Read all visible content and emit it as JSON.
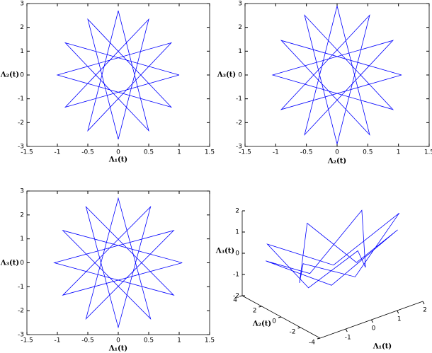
{
  "chart_data": [
    {
      "type": "line",
      "xlabel": "Λ₁(t)",
      "ylabel": "Λ₂(t)",
      "xlim": [
        -1.5,
        1.5
      ],
      "ylim": [
        -3,
        3
      ],
      "xticks": [
        -1.5,
        -1,
        -0.5,
        0,
        0.5,
        1,
        1.5
      ],
      "yticks": [
        -3,
        -2,
        -1,
        0,
        1,
        2,
        3
      ],
      "series": [
        {
          "color": "#0000ff",
          "x": [
            1,
            -0.87,
            0.5,
            0,
            -0.5,
            0.87,
            -1,
            0.87,
            -0.5,
            0,
            0.5,
            -0.87,
            1
          ],
          "y": [
            0,
            1.35,
            -2.34,
            2.7,
            -2.34,
            1.35,
            0,
            -1.35,
            2.34,
            -2.7,
            2.34,
            -1.35,
            0
          ]
        }
      ]
    },
    {
      "type": "line",
      "xlabel": "Λ₂(t)",
      "ylabel": "Λ₃(t)",
      "xlim": [
        -1.5,
        1.5
      ],
      "ylim": [
        -3,
        3
      ],
      "xticks": [
        -1.5,
        -1,
        -0.5,
        0,
        0.5,
        1,
        1.5
      ],
      "yticks": [
        -3,
        -2,
        -1,
        0,
        1,
        2,
        3
      ],
      "series": [
        {
          "color": "#0000ff",
          "x": [
            1.05,
            -0.91,
            0.53,
            0,
            -0.53,
            0.91,
            -1.05,
            0.91,
            -0.53,
            0,
            0.53,
            -0.91,
            1.05
          ],
          "y": [
            0,
            1.45,
            -2.51,
            2.9,
            -2.51,
            1.45,
            0,
            -1.45,
            2.51,
            -2.9,
            2.51,
            -1.45,
            0
          ]
        }
      ]
    },
    {
      "type": "line",
      "xlabel": "Λ₁(t)",
      "ylabel": "Λ₃(t)",
      "xlim": [
        -1.5,
        1.5
      ],
      "ylim": [
        -3,
        3
      ],
      "xticks": [
        -1.5,
        -1,
        -0.5,
        0,
        0.5,
        1,
        1.5
      ],
      "yticks": [
        -3,
        -2,
        -1,
        0,
        1,
        2,
        3
      ],
      "series": [
        {
          "color": "#0000ff",
          "x": [
            1.05,
            -0.91,
            0.53,
            0,
            -0.53,
            0.91,
            -1.05,
            0.91,
            -0.53,
            0,
            0.53,
            -0.91,
            1.05
          ],
          "y": [
            0,
            1.35,
            -2.34,
            2.7,
            -2.34,
            1.35,
            0,
            -1.35,
            2.34,
            -2.7,
            2.34,
            -1.35,
            0
          ]
        }
      ]
    },
    {
      "type": "line3d",
      "xlabel": "Λ₁(t)",
      "ylabel": "Λ₂(t)",
      "zlabel": "Λ₃(t)",
      "xlim": [
        -2,
        2
      ],
      "ylim": [
        -4,
        4
      ],
      "zlim": [
        -2,
        2
      ],
      "xticks": [
        -1,
        0,
        1,
        2
      ],
      "yticks": [
        -4,
        -2,
        0,
        2,
        4
      ],
      "zticks": [
        -2,
        -1,
        0,
        1,
        2
      ],
      "series": [
        {
          "color": "#0000ff",
          "x": [
            2.6,
            0.46,
            -1.84,
            -1.11,
            0,
            1.11,
            1.84,
            -0.46,
            -2.6,
            -0.46,
            1.84,
            1.11,
            0,
            -1.11,
            -1.84,
            0.46,
            2.6
          ],
          "y": [
            0,
            1.11,
            1.84,
            -0.46,
            -2.6,
            -0.46,
            1.84,
            1.11,
            0,
            -1.11,
            -1.84,
            0.46,
            2.6,
            0.46,
            -1.84,
            -1.11,
            0
          ],
          "z": [
            0.9,
            -0.9,
            0.9,
            -0.9,
            0.9,
            -0.9,
            0.9,
            -0.9,
            0.9,
            -0.9,
            0.9,
            -0.9,
            0.9,
            -0.9,
            0.9,
            -0.9,
            0.9
          ]
        }
      ]
    }
  ]
}
